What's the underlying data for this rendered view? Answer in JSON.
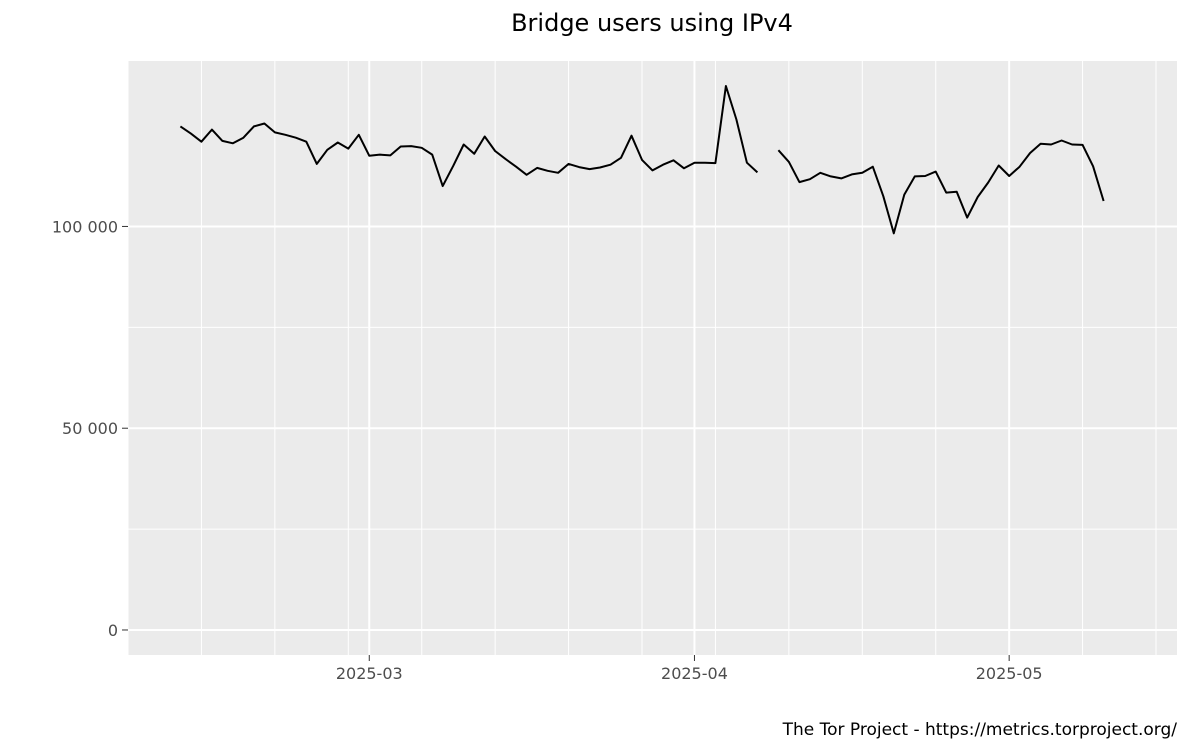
{
  "chart_data": {
    "type": "line",
    "title": "Bridge users using IPv4",
    "xlabel": "",
    "ylabel": "",
    "caption": "The Tor Project - https://metrics.torproject.org/",
    "x_ticks": [
      "2025-03-01",
      "2025-04-01",
      "2025-05-01"
    ],
    "x_tick_labels": [
      "2025-03",
      "2025-04",
      "2025-05"
    ],
    "y_ticks": [
      0,
      50000,
      100000
    ],
    "y_tick_labels": [
      "0",
      "50 000",
      "100 000"
    ],
    "xlim": [
      "2025-02-06",
      "2025-05-17"
    ],
    "ylim": [
      -6200,
      141000
    ],
    "grid": true,
    "legend": "none",
    "colors": {
      "panel": "#ebebeb",
      "grid": "#ffffff",
      "line": "#000000",
      "tick": "#333333"
    },
    "series": [
      {
        "values": [
          [
            "2025-02-11",
            124800
          ],
          [
            "2025-02-12",
            123000
          ],
          [
            "2025-02-13",
            121000
          ],
          [
            "2025-02-14",
            124000
          ],
          [
            "2025-02-15",
            121200
          ],
          [
            "2025-02-16",
            120600
          ],
          [
            "2025-02-17",
            122000
          ],
          [
            "2025-02-18",
            124800
          ],
          [
            "2025-02-19",
            125500
          ],
          [
            "2025-02-20",
            123300
          ],
          [
            "2025-02-21",
            122700
          ],
          [
            "2025-02-22",
            122000
          ],
          [
            "2025-02-23",
            121000
          ],
          [
            "2025-02-24",
            115500
          ],
          [
            "2025-02-25",
            119000
          ],
          [
            "2025-02-26",
            120800
          ],
          [
            "2025-02-27",
            119300
          ],
          [
            "2025-02-28",
            122700
          ],
          [
            "2025-03-01",
            117500
          ],
          [
            "2025-03-02",
            117800
          ],
          [
            "2025-03-03",
            117600
          ],
          [
            "2025-03-04",
            119800
          ],
          [
            "2025-03-05",
            119900
          ],
          [
            "2025-03-06",
            119500
          ],
          [
            "2025-03-07",
            117800
          ],
          [
            "2025-03-08",
            110000
          ],
          [
            "2025-03-09",
            115000
          ],
          [
            "2025-03-10",
            120300
          ],
          [
            "2025-03-11",
            118000
          ],
          [
            "2025-03-12",
            122300
          ],
          [
            "2025-03-13",
            118700
          ],
          [
            "2025-03-14",
            116700
          ],
          [
            "2025-03-15",
            114800
          ],
          [
            "2025-03-16",
            112800
          ],
          [
            "2025-03-17",
            114500
          ],
          [
            "2025-03-18",
            113800
          ],
          [
            "2025-03-19",
            113300
          ],
          [
            "2025-03-20",
            115500
          ],
          [
            "2025-03-21",
            114700
          ],
          [
            "2025-03-22",
            114200
          ],
          [
            "2025-03-23",
            114600
          ],
          [
            "2025-03-24",
            115300
          ],
          [
            "2025-03-25",
            117000
          ],
          [
            "2025-03-26",
            122500
          ],
          [
            "2025-03-27",
            116500
          ],
          [
            "2025-03-28",
            113900
          ],
          [
            "2025-03-29",
            115300
          ],
          [
            "2025-03-30",
            116400
          ],
          [
            "2025-03-31",
            114400
          ],
          [
            "2025-04-01",
            115800
          ],
          [
            "2025-04-02",
            115800
          ],
          [
            "2025-04-03",
            115700
          ],
          [
            "2025-04-04",
            134800
          ],
          [
            "2025-04-05",
            126500
          ],
          [
            "2025-04-06",
            115800
          ],
          [
            "2025-04-07",
            113400
          ],
          [
            "2025-04-08",
            null
          ],
          [
            "2025-04-09",
            118900
          ],
          [
            "2025-04-10",
            116000
          ],
          [
            "2025-04-11",
            111000
          ],
          [
            "2025-04-12",
            111700
          ],
          [
            "2025-04-13",
            113300
          ],
          [
            "2025-04-14",
            112400
          ],
          [
            "2025-04-15",
            111900
          ],
          [
            "2025-04-16",
            112900
          ],
          [
            "2025-04-17",
            113300
          ],
          [
            "2025-04-18",
            114800
          ],
          [
            "2025-04-19",
            107500
          ],
          [
            "2025-04-20",
            98300
          ],
          [
            "2025-04-21",
            107900
          ],
          [
            "2025-04-22",
            112400
          ],
          [
            "2025-04-23",
            112500
          ],
          [
            "2025-04-24",
            113600
          ],
          [
            "2025-04-25",
            108400
          ],
          [
            "2025-04-26",
            108600
          ],
          [
            "2025-04-27",
            102200
          ],
          [
            "2025-04-28",
            107300
          ],
          [
            "2025-04-29",
            110900
          ],
          [
            "2025-04-30",
            115100
          ],
          [
            "2025-05-01",
            112500
          ],
          [
            "2025-05-02",
            114800
          ],
          [
            "2025-05-03",
            118200
          ],
          [
            "2025-05-04",
            120500
          ],
          [
            "2025-05-05",
            120300
          ],
          [
            "2025-05-06",
            121300
          ],
          [
            "2025-05-07",
            120300
          ],
          [
            "2025-05-08",
            120200
          ],
          [
            "2025-05-09",
            114900
          ],
          [
            "2025-05-10",
            106300
          ]
        ]
      }
    ]
  }
}
